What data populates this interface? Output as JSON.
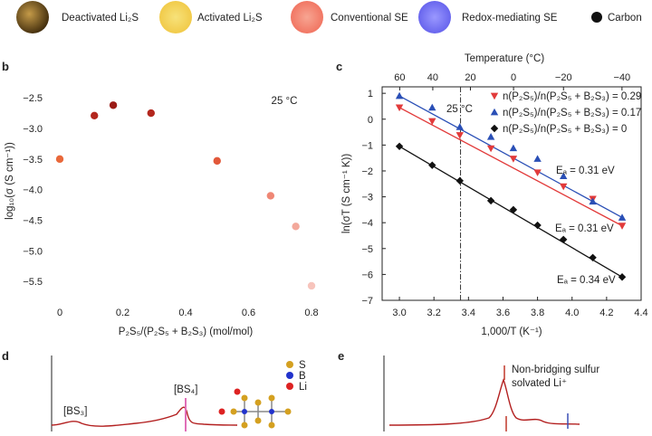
{
  "legend_top": [
    {
      "label": "Deactivated Li₂S",
      "color": "#6b4f1d",
      "icon": "ball-icon"
    },
    {
      "label": "Activated Li₂S",
      "color": "#f3d24a",
      "icon": "ball-icon"
    },
    {
      "label": "Conventional SE",
      "color": "#f07a66",
      "icon": "ball-icon"
    },
    {
      "label": "Redox-mediating SE",
      "color": "#6f6ef0",
      "icon": "ball-icon"
    },
    {
      "label": "Carbon",
      "color": "#111111",
      "icon": "dot-icon"
    }
  ],
  "panels": {
    "b": "b",
    "c": "c",
    "d": "d",
    "e": "e"
  },
  "chart_data": [
    {
      "id": "b",
      "type": "scatter",
      "xlabel": "P₂S₅/(P₂S₅ + B₂S₃) (mol/mol)",
      "ylabel": "log₁₀(σ (S cm⁻¹))",
      "annotation": "25 °C",
      "xlim": [
        0,
        0.8
      ],
      "ylim": [
        -5.6,
        -2.35
      ],
      "xticks": [
        0,
        0.2,
        0.4,
        0.6,
        0.8
      ],
      "xtick_labels": [
        "0",
        "0.2",
        "0.4",
        "0.6",
        "0.8"
      ],
      "yticks": [
        -2.5,
        -3.0,
        -3.5,
        -4.0,
        -4.5,
        -5.0,
        -5.5
      ],
      "ytick_labels": [
        "−2.5",
        "−3.0",
        "−3.5",
        "−4.0",
        "−4.5",
        "−5.0",
        "−5.5"
      ],
      "points": [
        {
          "x": 0.0,
          "y": -3.5,
          "color": "#e9683a"
        },
        {
          "x": 0.11,
          "y": -2.79,
          "color": "#b3271e"
        },
        {
          "x": 0.17,
          "y": -2.62,
          "color": "#9b1c17"
        },
        {
          "x": 0.29,
          "y": -2.75,
          "color": "#b3271e"
        },
        {
          "x": 0.5,
          "y": -3.53,
          "color": "#e2583a"
        },
        {
          "x": 0.67,
          "y": -4.1,
          "color": "#ef8775"
        },
        {
          "x": 0.75,
          "y": -4.6,
          "color": "#f3a89b"
        },
        {
          "x": 0.8,
          "y": -5.57,
          "color": "#f7c4bc"
        }
      ]
    },
    {
      "id": "c",
      "type": "scatter",
      "xlabel": "1,000/T (K⁻¹)",
      "ylabel": "ln(σT (S cm⁻¹ K))",
      "top_xlabel": "Temperature (°C)",
      "marker_label": "25 °C",
      "xlim": [
        2.9,
        4.4
      ],
      "ylim": [
        -7,
        1.25
      ],
      "xticks": [
        3.0,
        3.2,
        3.4,
        3.6,
        3.8,
        4.0,
        4.2,
        4.4
      ],
      "xtick_labels": [
        "3.0",
        "3.2",
        "3.4",
        "3.6",
        "3.8",
        "4.0",
        "4.2",
        "4.4"
      ],
      "yticks": [
        1,
        0,
        -1,
        -2,
        -3,
        -4,
        -5,
        -6,
        -7
      ],
      "ytick_labels": [
        "1",
        "0",
        "−1",
        "−2",
        "−3",
        "−4",
        "−5",
        "−6",
        "−7"
      ],
      "top_ticks": [
        60,
        40,
        20,
        0,
        -20,
        -40
      ],
      "top_tick_labels": [
        "60",
        "40",
        "20",
        "0",
        "−20",
        "−40"
      ],
      "series": [
        {
          "name": "n(P₂S₅)/n(P₂S₅ + B₂S₃) = 0.29",
          "marker": "triangle-down",
          "color": "#e23a3a",
          "x": [
            3.0,
            3.19,
            3.35,
            3.53,
            3.66,
            3.8,
            3.95,
            4.12,
            4.29
          ],
          "y": [
            0.45,
            -0.08,
            -0.62,
            -1.13,
            -1.53,
            -2.06,
            -2.6,
            -3.08,
            -4.12
          ]
        },
        {
          "name": "n(P₂S₅)/n(P₂S₅ + B₂S₃) = 0.17",
          "marker": "triangle-up",
          "color": "#2a4fb6",
          "x": [
            3.0,
            3.19,
            3.35,
            3.53,
            3.66,
            3.8,
            3.95,
            4.12,
            4.29
          ],
          "y": [
            0.9,
            0.45,
            -0.3,
            -0.68,
            -1.12,
            -1.53,
            -2.2,
            -3.18,
            -3.8
          ]
        },
        {
          "name": "n(P₂S₅)/n(P₂S₅ + B₂S₃) = 0",
          "marker": "diamond",
          "color": "#111111",
          "x": [
            3.0,
            3.19,
            3.35,
            3.53,
            3.66,
            3.8,
            3.95,
            4.12,
            4.29
          ],
          "y": [
            -1.05,
            -1.78,
            -2.38,
            -3.15,
            -3.5,
            -4.1,
            -4.65,
            -5.35,
            -6.1
          ]
        }
      ],
      "fit_lines": [
        {
          "color": "#e23a3a",
          "x": [
            3.0,
            4.29
          ],
          "y": [
            0.45,
            -4.12
          ]
        },
        {
          "color": "#2a4fb6",
          "x": [
            3.0,
            4.29
          ],
          "y": [
            0.9,
            -3.8
          ]
        },
        {
          "color": "#111111",
          "x": [
            3.0,
            4.29
          ],
          "y": [
            -1.05,
            -6.1
          ]
        }
      ],
      "activation_energies": [
        "Eₐ = 0.31 eV",
        "Eₐ = 0.31 eV",
        "Eₐ = 0.34 eV"
      ]
    }
  ],
  "panel_d": {
    "label_bs3": "[BS₃]",
    "label_bs4": "[BS₄]",
    "atom_legend": [
      {
        "label": "S",
        "color": "#d4a020"
      },
      {
        "label": "B",
        "color": "#2233cc"
      },
      {
        "label": "Li",
        "color": "#dd2222"
      }
    ]
  },
  "panel_e": {
    "annotation_line1": "Non-bridging sulfur",
    "annotation_line2": "solvated Li⁺"
  }
}
